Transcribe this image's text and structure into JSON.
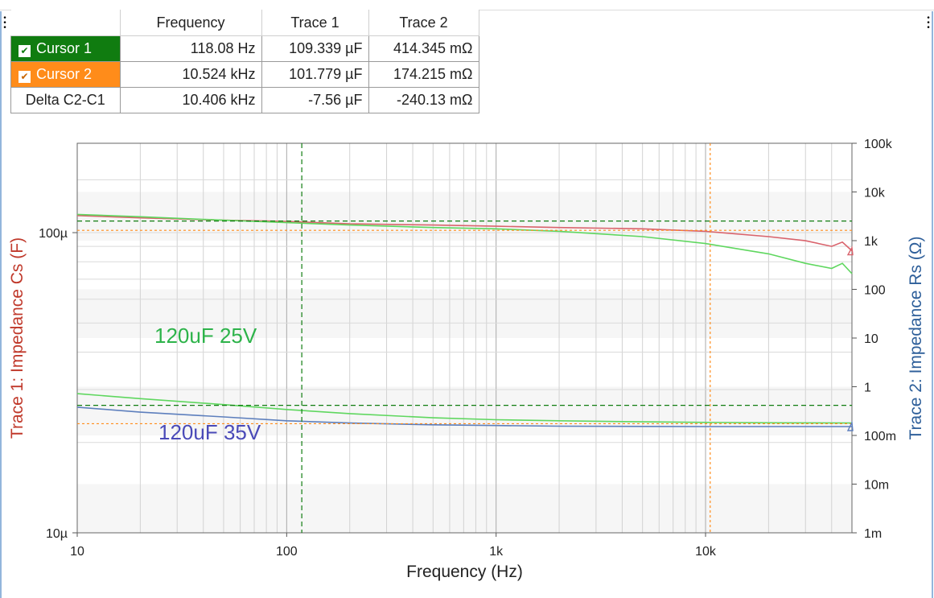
{
  "cursor_table": {
    "headers": [
      "Frequency",
      "Trace 1",
      "Trace 2"
    ],
    "rows": [
      {
        "label": "Cursor 1",
        "checked": true,
        "frequency": "118.08 Hz",
        "trace1": "109.339 µF",
        "trace2": "414.345 mΩ"
      },
      {
        "label": "Cursor 2",
        "checked": true,
        "frequency": "10.524 kHz",
        "trace1": "101.779 µF",
        "trace2": "174.215 mΩ"
      },
      {
        "label": "Delta C2-C1",
        "checked": false,
        "frequency": "10.406 kHz",
        "trace1": "-7.56 µF",
        "trace2": "-240.13 mΩ"
      }
    ]
  },
  "colors": {
    "cursor1": "#107c10",
    "cursor2": "#ff8c1a",
    "trace1_label": "#c0392b",
    "trace2_label": "#2e5f9a",
    "green_trace": "#5fd75f",
    "red_trace": "#d9636c",
    "blue_trace": "#5d7fbd",
    "annotation_green": "#2db34a",
    "annotation_blue": "#4a4ab8"
  },
  "chart_data": {
    "type": "line",
    "x_scale": "log",
    "xlim": [
      10,
      50000
    ],
    "xlabel": "Frequency (Hz)",
    "x_ticks": [
      {
        "value": 10,
        "label": "10"
      },
      {
        "value": 100,
        "label": "100"
      },
      {
        "value": 1000,
        "label": "1k"
      },
      {
        "value": 10000,
        "label": "10k"
      }
    ],
    "y_left": {
      "label": "Trace 1: Impedance Cs (F)",
      "scale": "log",
      "lim": [
        1e-05,
        0.0001985
      ],
      "ticks": [
        {
          "value": 1e-05,
          "label": "10µ"
        },
        {
          "value": 0.0001,
          "label": "100µ"
        }
      ]
    },
    "y_right": {
      "label": "Trace 2: Impedance Rs (Ω)",
      "scale": "log",
      "lim": [
        0.001,
        100000
      ],
      "ticks": [
        {
          "value": 100000,
          "label": "100k"
        },
        {
          "value": 10000,
          "label": "10k"
        },
        {
          "value": 1000,
          "label": "1k"
        },
        {
          "value": 100,
          "label": "100"
        },
        {
          "value": 10,
          "label": "10"
        },
        {
          "value": 1,
          "label": "1"
        },
        {
          "value": 0.1,
          "label": "100m"
        },
        {
          "value": 0.01,
          "label": "10m"
        },
        {
          "value": 0.001,
          "label": "1m"
        }
      ]
    },
    "grid": true,
    "cursors": [
      {
        "name": "Cursor 1",
        "x": 118.08,
        "y_left": 0.000109339,
        "y_right": 0.414345
      },
      {
        "name": "Cursor 2",
        "x": 10524,
        "y_left": 0.000101779,
        "y_right": 0.174215
      }
    ],
    "series": [
      {
        "axis": "left",
        "color_key": "red_trace",
        "x": [
          10,
          20,
          50,
          100,
          200,
          500,
          1000,
          2000,
          5000,
          10000,
          20000,
          30000,
          40000,
          45000,
          50000
        ],
        "y": [
          0.000114,
          0.000112,
          0.00011,
          0.000109,
          0.000107,
          0.000106,
          0.000105,
          0.000104,
          0.000103,
          0.000101,
          9.7e-05,
          9.4e-05,
          9e-05,
          9.3e-05,
          8.7e-05
        ]
      },
      {
        "axis": "left",
        "color_key": "green_trace",
        "x": [
          10,
          20,
          50,
          100,
          200,
          500,
          1000,
          2000,
          5000,
          10000,
          20000,
          30000,
          40000,
          45000,
          50000
        ],
        "y": [
          0.000115,
          0.000113,
          0.00011,
          0.000108,
          0.000106,
          0.000104,
          0.000103,
          0.000101,
          9.7e-05,
          9.2e-05,
          8.5e-05,
          7.9e-05,
          7.6e-05,
          7.9e-05,
          7.3e-05
        ]
      },
      {
        "axis": "right",
        "color_key": "green_trace",
        "x": [
          10,
          20,
          50,
          100,
          200,
          500,
          1000,
          2000,
          5000,
          10000,
          20000,
          50000
        ],
        "y": [
          0.72,
          0.57,
          0.43,
          0.34,
          0.28,
          0.23,
          0.21,
          0.2,
          0.19,
          0.185,
          0.182,
          0.18
        ]
      },
      {
        "axis": "right",
        "color_key": "blue_trace",
        "x": [
          10,
          20,
          50,
          100,
          200,
          500,
          1000,
          2000,
          5000,
          10000,
          20000,
          50000
        ],
        "y": [
          0.38,
          0.3,
          0.24,
          0.2,
          0.18,
          0.165,
          0.16,
          0.155,
          0.153,
          0.152,
          0.152,
          0.152
        ]
      }
    ],
    "annotations": [
      {
        "text": "120uF 25V",
        "color_key": "annotation_green"
      },
      {
        "text": "120uF 35V",
        "color_key": "annotation_blue"
      }
    ]
  }
}
